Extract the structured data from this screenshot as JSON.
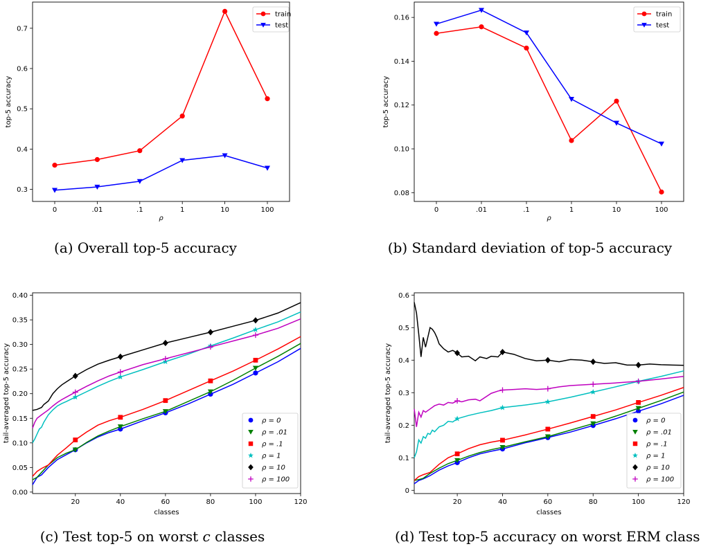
{
  "chart_data": [
    {
      "panel": "a",
      "type": "line",
      "caption": "(a) Overall top-5 accuracy",
      "xlabel": "ρ",
      "ylabel": "top-5 accuracy",
      "categories": [
        "0",
        ".01",
        ".1",
        "1",
        "10",
        "100"
      ],
      "ylim": [
        0.27,
        0.765
      ],
      "yticks": [
        0.3,
        0.4,
        0.5,
        0.6,
        0.7
      ],
      "legend": "top-right",
      "grid": false,
      "series": [
        {
          "name": "train",
          "color": "#ff0000",
          "marker": "circle",
          "values": [
            0.36,
            0.374,
            0.396,
            0.482,
            0.742,
            0.525
          ]
        },
        {
          "name": "test",
          "color": "#0000ff",
          "marker": "triangle-down",
          "values": [
            0.298,
            0.306,
            0.32,
            0.372,
            0.384,
            0.353
          ]
        }
      ]
    },
    {
      "panel": "b",
      "type": "line",
      "caption": "(b) Standard deviation of top-5 accuracy",
      "xlabel": "ρ",
      "ylabel": "top-5 accuracy",
      "categories": [
        "0",
        ".01",
        ".1",
        "1",
        "10",
        "100"
      ],
      "ylim": [
        0.076,
        0.167
      ],
      "yticks": [
        0.08,
        0.1,
        0.12,
        0.14,
        0.16
      ],
      "ytick_labels": [
        "0.08",
        "0.10",
        "0.12",
        "0.14",
        "0.16"
      ],
      "legend": "top-right",
      "grid": false,
      "series": [
        {
          "name": "train",
          "color": "#ff0000",
          "marker": "circle",
          "values": [
            0.1527,
            0.1557,
            0.146,
            0.1038,
            0.1218,
            0.0803
          ]
        },
        {
          "name": "test",
          "color": "#0000ff",
          "marker": "triangle-down",
          "values": [
            0.157,
            0.1633,
            0.153,
            0.1227,
            0.1118,
            0.1023
          ]
        }
      ]
    },
    {
      "panel": "c",
      "type": "line",
      "caption_prefix": "(c) Test top-5 on worst ",
      "caption_var": "c",
      "caption_suffix": " classes",
      "xlabel": "classes",
      "ylabel": "tail-averaged top-5 accuracy",
      "xlim": [
        1,
        120
      ],
      "xticks": [
        20,
        40,
        60,
        80,
        100,
        120
      ],
      "ylim": [
        -0.003,
        0.405
      ],
      "yticks": [
        0.0,
        0.05,
        0.1,
        0.15,
        0.2,
        0.25,
        0.3,
        0.35,
        0.4
      ],
      "ytick_labels": [
        "0.00",
        "0.05",
        "0.10",
        "0.15",
        "0.20",
        "0.25",
        "0.30",
        "0.35",
        "0.40"
      ],
      "legend": "lower-right",
      "grid": false,
      "series": [
        {
          "name": "ρ = 0",
          "color": "#0000ff",
          "marker": "circle",
          "marker_x": [
            20,
            40,
            60,
            80,
            100
          ],
          "x": [
            1,
            3,
            5,
            8,
            12,
            16,
            20,
            25,
            30,
            35,
            40,
            50,
            60,
            70,
            80,
            90,
            100,
            110,
            120
          ],
          "y": [
            0.015,
            0.03,
            0.035,
            0.05,
            0.066,
            0.076,
            0.086,
            0.1,
            0.112,
            0.121,
            0.128,
            0.145,
            0.161,
            0.179,
            0.199,
            0.219,
            0.242,
            0.265,
            0.292
          ]
        },
        {
          "name": "ρ = .01",
          "color": "#008000",
          "marker": "triangle-down",
          "marker_x": [
            20,
            40,
            60,
            80,
            100
          ],
          "x": [
            1,
            3,
            5,
            8,
            12,
            16,
            20,
            25,
            30,
            35,
            40,
            50,
            60,
            70,
            80,
            90,
            100,
            110,
            120
          ],
          "y": [
            0.025,
            0.03,
            0.04,
            0.055,
            0.07,
            0.079,
            0.086,
            0.101,
            0.114,
            0.124,
            0.133,
            0.149,
            0.164,
            0.184,
            0.204,
            0.227,
            0.252,
            0.276,
            0.302
          ]
        },
        {
          "name": "ρ = .1",
          "color": "#ff0000",
          "marker": "square",
          "marker_x": [
            20,
            40,
            60,
            80,
            100
          ],
          "x": [
            1,
            3,
            5,
            8,
            12,
            16,
            20,
            25,
            30,
            35,
            40,
            50,
            60,
            70,
            80,
            90,
            100,
            110,
            120
          ],
          "y": [
            0.032,
            0.042,
            0.048,
            0.055,
            0.075,
            0.09,
            0.106,
            0.122,
            0.136,
            0.145,
            0.152,
            0.168,
            0.186,
            0.206,
            0.226,
            0.246,
            0.268,
            0.291,
            0.316
          ]
        },
        {
          "name": "ρ = 1",
          "color": "#00bfbf",
          "marker": "star",
          "marker_x": [
            20,
            40,
            60,
            80,
            100
          ],
          "x": [
            1,
            2,
            3,
            4,
            5,
            6,
            8,
            10,
            12,
            14,
            16,
            20,
            25,
            30,
            35,
            40,
            50,
            60,
            70,
            80,
            90,
            100,
            110,
            120
          ],
          "y": [
            0.1,
            0.108,
            0.118,
            0.128,
            0.132,
            0.142,
            0.157,
            0.167,
            0.175,
            0.18,
            0.184,
            0.193,
            0.204,
            0.215,
            0.225,
            0.234,
            0.249,
            0.265,
            0.28,
            0.297,
            0.313,
            0.33,
            0.346,
            0.366
          ]
        },
        {
          "name": "ρ = 10",
          "color": "#000000",
          "marker": "diamond",
          "marker_x": [
            20,
            40,
            60,
            80,
            100
          ],
          "x": [
            1,
            3,
            5,
            6,
            8,
            10,
            12,
            14,
            16,
            20,
            25,
            30,
            35,
            40,
            50,
            60,
            70,
            80,
            90,
            100,
            110,
            120
          ],
          "y": [
            0.166,
            0.168,
            0.172,
            0.178,
            0.185,
            0.2,
            0.21,
            0.218,
            0.224,
            0.236,
            0.249,
            0.26,
            0.268,
            0.275,
            0.289,
            0.303,
            0.314,
            0.325,
            0.337,
            0.349,
            0.364,
            0.385
          ]
        },
        {
          "name": "ρ = 100",
          "color": "#bf00bf",
          "marker": "plus",
          "marker_x": [
            20,
            40,
            60,
            80,
            100
          ],
          "x": [
            1,
            2,
            3,
            5,
            8,
            10,
            12,
            14,
            16,
            20,
            25,
            30,
            35,
            40,
            50,
            60,
            70,
            80,
            90,
            100,
            110,
            120
          ],
          "y": [
            0.13,
            0.142,
            0.15,
            0.157,
            0.167,
            0.175,
            0.182,
            0.188,
            0.193,
            0.203,
            0.215,
            0.226,
            0.236,
            0.244,
            0.259,
            0.271,
            0.283,
            0.295,
            0.307,
            0.319,
            0.333,
            0.352
          ]
        }
      ]
    },
    {
      "panel": "d",
      "type": "line",
      "caption": "(d) Test top-5 accuracy on worst ERM class",
      "xlabel": "classes",
      "ylabel": "tail-averaged top-5 accuracy",
      "xlim": [
        1,
        120
      ],
      "xticks": [
        20,
        40,
        60,
        80,
        100,
        120
      ],
      "ylim": [
        -0.01,
        0.607
      ],
      "yticks": [
        0.0,
        0.1,
        0.2,
        0.3,
        0.4,
        0.5,
        0.6
      ],
      "legend": "lower-right",
      "grid": false,
      "series": [
        {
          "name": "ρ = 0",
          "color": "#0000ff",
          "marker": "circle",
          "marker_x": [
            20,
            40,
            60,
            80,
            100
          ],
          "x": [
            1,
            3,
            5,
            8,
            12,
            16,
            20,
            25,
            30,
            35,
            40,
            50,
            60,
            70,
            80,
            90,
            100,
            110,
            120
          ],
          "y": [
            0.02,
            0.03,
            0.035,
            0.045,
            0.062,
            0.075,
            0.085,
            0.1,
            0.112,
            0.12,
            0.127,
            0.146,
            0.162,
            0.179,
            0.199,
            0.22,
            0.243,
            0.266,
            0.292
          ]
        },
        {
          "name": "ρ = .01",
          "color": "#008000",
          "marker": "triangle-down",
          "marker_x": [
            20,
            40,
            60,
            80,
            100
          ],
          "x": [
            1,
            3,
            5,
            8,
            12,
            16,
            20,
            25,
            30,
            35,
            40,
            50,
            60,
            70,
            80,
            90,
            100,
            110,
            120
          ],
          "y": [
            0.03,
            0.033,
            0.037,
            0.052,
            0.068,
            0.082,
            0.092,
            0.105,
            0.116,
            0.125,
            0.132,
            0.149,
            0.165,
            0.185,
            0.205,
            0.228,
            0.252,
            0.276,
            0.302
          ]
        },
        {
          "name": "ρ = .1",
          "color": "#ff0000",
          "marker": "square",
          "marker_x": [
            20,
            40,
            60,
            80,
            100
          ],
          "x": [
            1,
            3,
            5,
            8,
            12,
            16,
            20,
            25,
            30,
            35,
            40,
            50,
            60,
            70,
            80,
            90,
            100,
            110,
            120
          ],
          "y": [
            0.03,
            0.042,
            0.048,
            0.055,
            0.08,
            0.1,
            0.112,
            0.128,
            0.14,
            0.148,
            0.154,
            0.17,
            0.188,
            0.207,
            0.227,
            0.247,
            0.27,
            0.292,
            0.316
          ]
        },
        {
          "name": "ρ = 1",
          "color": "#00bfbf",
          "marker": "star",
          "marker_x": [
            20,
            40,
            60,
            80,
            100
          ],
          "x": [
            1,
            2,
            3,
            4,
            5,
            6,
            7,
            8,
            9,
            10,
            12,
            14,
            16,
            18,
            20,
            25,
            30,
            35,
            40,
            50,
            60,
            70,
            80,
            90,
            100,
            110,
            120
          ],
          "y": [
            0.1,
            0.118,
            0.155,
            0.145,
            0.165,
            0.16,
            0.175,
            0.172,
            0.185,
            0.18,
            0.195,
            0.2,
            0.212,
            0.21,
            0.22,
            0.23,
            0.238,
            0.245,
            0.254,
            0.262,
            0.272,
            0.286,
            0.302,
            0.318,
            0.335,
            0.35,
            0.367
          ]
        },
        {
          "name": "ρ = 10",
          "color": "#000000",
          "marker": "diamond",
          "marker_x": [
            20,
            40,
            60,
            80,
            100
          ],
          "x": [
            1,
            2,
            3,
            4,
            5,
            6,
            7,
            8,
            9,
            10,
            11,
            12,
            14,
            16,
            18,
            20,
            22,
            25,
            28,
            30,
            33,
            35,
            38,
            40,
            45,
            50,
            55,
            60,
            65,
            70,
            75,
            80,
            85,
            90,
            95,
            100,
            105,
            110,
            115,
            120
          ],
          "y": [
            0.578,
            0.545,
            0.48,
            0.41,
            0.47,
            0.44,
            0.47,
            0.5,
            0.495,
            0.485,
            0.47,
            0.45,
            0.435,
            0.425,
            0.43,
            0.422,
            0.41,
            0.412,
            0.398,
            0.41,
            0.405,
            0.412,
            0.41,
            0.425,
            0.418,
            0.405,
            0.398,
            0.4,
            0.395,
            0.402,
            0.4,
            0.395,
            0.39,
            0.392,
            0.385,
            0.385,
            0.388,
            0.386,
            0.385,
            0.384
          ]
        },
        {
          "name": "ρ = 100",
          "color": "#bf00bf",
          "marker": "plus",
          "marker_x": [
            20,
            40,
            60,
            80,
            100
          ],
          "x": [
            1,
            2,
            3,
            4,
            5,
            6,
            8,
            10,
            12,
            14,
            16,
            18,
            20,
            22,
            25,
            28,
            30,
            35,
            38,
            40,
            45,
            50,
            55,
            60,
            65,
            70,
            80,
            90,
            100,
            110,
            120
          ],
          "y": [
            0.25,
            0.195,
            0.24,
            0.225,
            0.245,
            0.24,
            0.25,
            0.26,
            0.265,
            0.262,
            0.27,
            0.268,
            0.275,
            0.272,
            0.278,
            0.28,
            0.275,
            0.298,
            0.305,
            0.308,
            0.31,
            0.312,
            0.31,
            0.312,
            0.318,
            0.322,
            0.326,
            0.33,
            0.335,
            0.342,
            0.35
          ]
        }
      ]
    }
  ]
}
